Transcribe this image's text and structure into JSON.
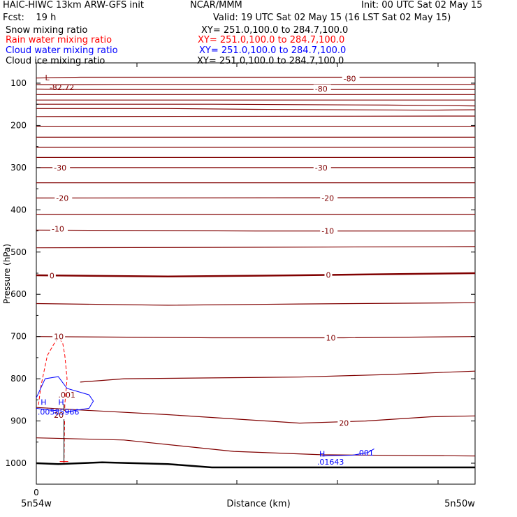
{
  "header": {
    "model": "HAIC-HIWC 13km ARW-GFS init",
    "org": "NCAR/MMM",
    "init": "Init: 00 UTC Sat 02 May 15",
    "fcst": "Fcst:    19 h",
    "valid": "Valid: 19 UTC Sat 02 May 15 (16 LST Sat 02 May 15)"
  },
  "fields": [
    {
      "name": "Snow mixing ratio",
      "xy": "XY= 251.0,100.0 to 284.7,100.0",
      "color": "#000000"
    },
    {
      "name": "Rain water mixing ratio",
      "xy": "XY= 251.0,100.0 to 284.7,100.0",
      "color": "#ff0000"
    },
    {
      "name": "Cloud water mixing ratio",
      "xy": "XY= 251.0,100.0 to 284.7,100.0",
      "color": "#0000ff"
    },
    {
      "name": "Cloud ice mixing ratio",
      "xy": "XY= 251.0,100.0 to 284.7,100.0",
      "color": "#000000"
    }
  ],
  "chart_data": {
    "type": "line",
    "xlabel": "Distance (km)",
    "ylabel": "Pressure (hPa)",
    "x_tick_start": "0",
    "x_left_label": "5n54w",
    "x_right_label": "5n50w",
    "y_ticks": [
      100,
      200,
      300,
      400,
      500,
      600,
      700,
      800,
      900,
      1000
    ],
    "ylim": [
      1050,
      50
    ],
    "colors": {
      "temperature": "#800000",
      "rain": "#ff0000",
      "cloud": "#0000ff",
      "ground": "#000000"
    },
    "temperature_labels": [
      {
        "text": "-80",
        "x": 0.7,
        "p": 89
      },
      {
        "text": "-80",
        "x": 0.635,
        "p": 113
      },
      {
        "text": "-30",
        "x": 0.04,
        "p": 300
      },
      {
        "text": "-30",
        "x": 0.635,
        "p": 300
      },
      {
        "text": "-20",
        "x": 0.045,
        "p": 372
      },
      {
        "text": "-20",
        "x": 0.65,
        "p": 372
      },
      {
        "text": "-10",
        "x": 0.035,
        "p": 445
      },
      {
        "text": "-10",
        "x": 0.65,
        "p": 450
      },
      {
        "text": "0",
        "x": 0.03,
        "p": 556
      },
      {
        "text": "0",
        "x": 0.66,
        "p": 554
      },
      {
        "text": "10",
        "x": 0.04,
        "p": 700
      },
      {
        "text": "10",
        "x": 0.66,
        "p": 703
      },
      {
        "text": "20",
        "x": 0.04,
        "p": 886
      },
      {
        "text": "20",
        "x": 0.69,
        "p": 905
      }
    ],
    "extrema_labels": [
      {
        "text": "L",
        "x": 0.02,
        "p": 87,
        "color": "#800000"
      },
      {
        "text": "-82.72",
        "x": 0.03,
        "p": 110,
        "color": "#800000"
      },
      {
        "text": "H",
        "x": 0.01,
        "p": 855,
        "color": "#0000ff"
      },
      {
        "text": "H",
        "x": 0.05,
        "p": 855,
        "color": "#0000ff"
      },
      {
        "text": ".00585966",
        "x": 0.003,
        "p": 878,
        "color": "#0000ff"
      },
      {
        "text": ".001",
        "x": 0.05,
        "p": 838,
        "color": "#800000"
      },
      {
        "text": "H",
        "x": 0.645,
        "p": 978,
        "color": "#0000ff"
      },
      {
        "text": ".001",
        "x": 0.73,
        "p": 975,
        "color": "#0000ff"
      },
      {
        "text": ".01643",
        "x": 0.64,
        "p": 997,
        "color": "#0000ff"
      }
    ],
    "temperature_isotherms": [
      [
        [
          0,
          88
        ],
        [
          0.1,
          86
        ],
        [
          1,
          86
        ]
      ],
      [
        [
          0,
          104
        ],
        [
          0.1,
          104
        ],
        [
          0.2,
          103
        ],
        [
          1,
          103
        ]
      ],
      [
        [
          0,
          114
        ],
        [
          0.1,
          115
        ],
        [
          1,
          115
        ]
      ],
      [
        [
          0,
          127
        ],
        [
          1,
          127
        ]
      ],
      [
        [
          0,
          140
        ],
        [
          1,
          140
        ]
      ],
      [
        [
          0,
          150
        ],
        [
          0.4,
          150
        ],
        [
          0.8,
          152
        ],
        [
          1,
          154
        ]
      ],
      [
        [
          0,
          160
        ],
        [
          0.3,
          160
        ],
        [
          0.5,
          162
        ],
        [
          0.9,
          164
        ],
        [
          1,
          163
        ]
      ],
      [
        [
          0,
          179
        ],
        [
          1,
          178
        ]
      ],
      [
        [
          0,
          203
        ],
        [
          1,
          203
        ]
      ],
      [
        [
          0,
          228
        ],
        [
          1,
          228
        ]
      ],
      [
        [
          0,
          252
        ],
        [
          1,
          252
        ]
      ],
      [
        [
          0,
          276
        ],
        [
          1,
          276
        ]
      ],
      [
        [
          0,
          300
        ],
        [
          1,
          300
        ]
      ],
      [
        [
          0,
          336
        ],
        [
          1,
          336
        ]
      ],
      [
        [
          0,
          372
        ],
        [
          1,
          371
        ]
      ],
      [
        [
          0,
          411
        ],
        [
          1,
          411
        ]
      ],
      [
        [
          0,
          448
        ],
        [
          0.5,
          450
        ],
        [
          1,
          450
        ]
      ],
      [
        [
          0,
          490
        ],
        [
          0.4,
          489
        ],
        [
          1,
          487
        ]
      ],
      [
        [
          0,
          555
        ],
        [
          0.3,
          558
        ],
        [
          0.6,
          555
        ],
        [
          1,
          550
        ]
      ],
      [
        [
          0,
          622
        ],
        [
          0.3,
          626
        ],
        [
          0.6,
          623
        ],
        [
          1,
          620
        ]
      ],
      [
        [
          0,
          700
        ],
        [
          0.4,
          703
        ],
        [
          0.7,
          703
        ],
        [
          1,
          700
        ]
      ],
      [
        [
          0.1,
          808
        ],
        [
          0.2,
          800
        ],
        [
          0.4,
          798
        ],
        [
          0.6,
          796
        ],
        [
          0.8,
          790
        ],
        [
          1,
          782
        ]
      ],
      [
        [
          0,
          868
        ],
        [
          0.1,
          874
        ],
        [
          0.3,
          885
        ],
        [
          0.6,
          905
        ],
        [
          0.75,
          900
        ],
        [
          0.9,
          890
        ],
        [
          1,
          888
        ]
      ],
      [
        [
          0,
          940
        ],
        [
          0.2,
          945
        ],
        [
          0.45,
          972
        ],
        [
          0.65,
          980
        ],
        [
          1,
          983
        ]
      ]
    ],
    "ground_line": [
      [
        0,
        1000
      ],
      [
        0.05,
        1002
      ],
      [
        0.15,
        998
      ],
      [
        0.3,
        1002
      ],
      [
        0.4,
        1010
      ],
      [
        0.6,
        1010
      ],
      [
        1,
        1010
      ]
    ],
    "rain_contour": [
      [
        0.005,
        862
      ],
      [
        0.01,
        820
      ],
      [
        0.025,
        745
      ],
      [
        0.04,
        718
      ],
      [
        0.05,
        703
      ],
      [
        0.06,
        715
      ],
      [
        0.065,
        745
      ],
      [
        0.07,
        800
      ],
      [
        0.065,
        860
      ],
      [
        0.063,
        1000
      ]
    ],
    "rain_stem": [
      [
        0.063,
        860
      ],
      [
        0.063,
        996
      ]
    ],
    "cloud_contour_left": [
      [
        0,
        845
      ],
      [
        0.02,
        800
      ],
      [
        0.05,
        795
      ],
      [
        0.07,
        823
      ],
      [
        0.12,
        838
      ],
      [
        0.13,
        853
      ],
      [
        0.12,
        870
      ],
      [
        0.07,
        878
      ],
      [
        0.02,
        873
      ],
      [
        0,
        870
      ]
    ],
    "cloud_contour_right": [
      [
        0.65,
        983
      ],
      [
        0.72,
        981
      ],
      [
        0.755,
        975
      ],
      [
        0.77,
        966
      ]
    ]
  }
}
